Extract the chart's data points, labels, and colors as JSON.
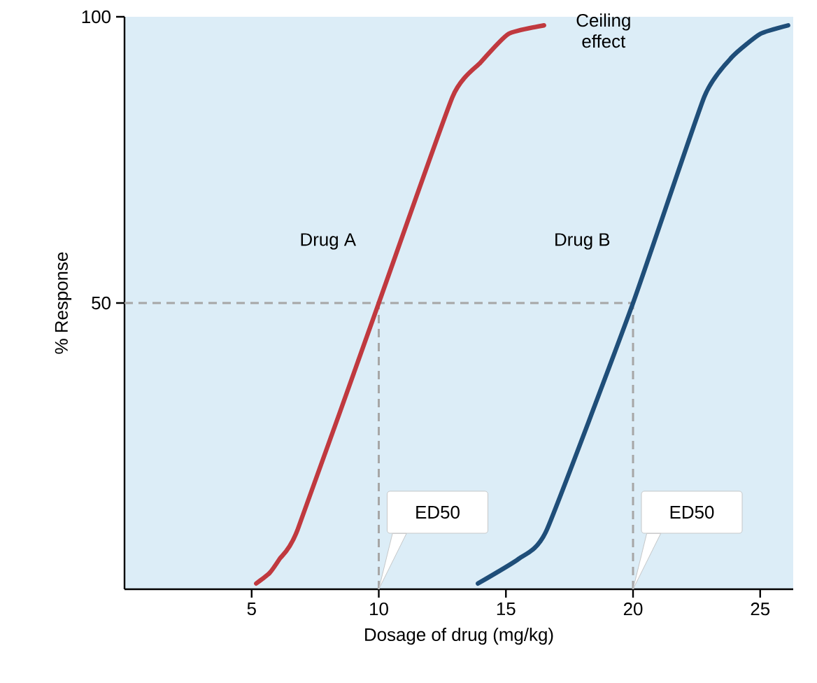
{
  "chart_data": {
    "type": "line",
    "xlabel": "Dosage of drug (mg/kg)",
    "ylabel": "% Response",
    "xlim": [
      0,
      26.3
    ],
    "ylim": [
      0,
      100
    ],
    "xticks": [
      5,
      10,
      15,
      20,
      25
    ],
    "yticks": [
      50,
      100
    ],
    "grid": false,
    "marker": "none",
    "line_style": "solid",
    "series": [
      {
        "name": "Drug A",
        "color": "#c0393f",
        "x": [
          5.18,
          5.7,
          6.1,
          6.8,
          10,
          12.9,
          14.0,
          15.1,
          16.5
        ],
        "values": [
          1,
          2.8,
          5.3,
          10.3,
          50,
          86,
          92,
          97,
          98.5
        ]
      },
      {
        "name": "Drug B",
        "color": "#1f4e79",
        "x": [
          13.9,
          15.5,
          16.6,
          20,
          22.8,
          23.9,
          25.0,
          26.1
        ],
        "values": [
          1,
          5.3,
          10.3,
          50,
          86,
          93,
          97,
          98.5
        ]
      }
    ],
    "ref_lines": [
      {
        "axis": "y",
        "value": 50,
        "color": "#a6a6a6",
        "line_style": "dashed"
      },
      {
        "axis": "x",
        "value": 10,
        "color": "#a6a6a6",
        "line_style": "dashed"
      },
      {
        "axis": "x",
        "value": 20,
        "color": "#a6a6a6",
        "line_style": "dashed"
      }
    ],
    "annotations": [
      {
        "text": "Ceiling effect",
        "x": 16.5,
        "y": 98.5
      },
      {
        "text": "ED50",
        "x": 10,
        "y": 0
      },
      {
        "text": "ED50",
        "x": 20,
        "y": 0
      }
    ]
  }
}
